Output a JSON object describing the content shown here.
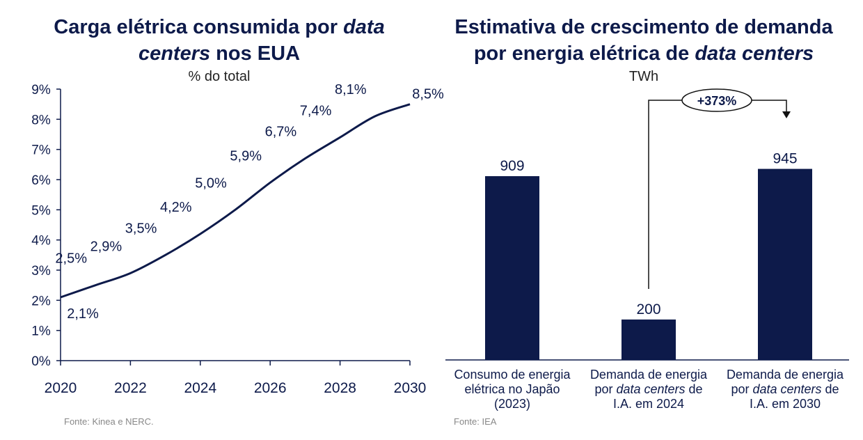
{
  "chart_data": [
    {
      "type": "line",
      "title_parts": [
        "Carga elétrica consumida por ",
        "data",
        "centers",
        " nos EUA"
      ],
      "subtitle": "% do total",
      "x": [
        2020,
        2021,
        2022,
        2023,
        2024,
        2025,
        2026,
        2027,
        2028,
        2029,
        2030
      ],
      "values": [
        2.1,
        2.5,
        2.9,
        3.5,
        4.2,
        5.0,
        5.9,
        6.7,
        7.4,
        8.1,
        8.5
      ],
      "value_labels": [
        "2,1%",
        "2,5%",
        "2,9%",
        "3,5%",
        "4,2%",
        "5,0%",
        "5,9%",
        "6,7%",
        "7,4%",
        "8,1%",
        "8,5%"
      ],
      "x_ticks": [
        "2020",
        "2022",
        "2024",
        "2026",
        "2028",
        "2030"
      ],
      "y_ticks": [
        "0%",
        "1%",
        "2%",
        "3%",
        "4%",
        "5%",
        "6%",
        "7%",
        "8%",
        "9%"
      ],
      "ylim": [
        0,
        9
      ],
      "xlim": [
        2020,
        2030
      ],
      "source": "Fonte: Kinea e NERC.",
      "line_color": "#0d1a4a"
    },
    {
      "type": "bar",
      "title_parts": [
        "Estimativa de crescimento de demanda",
        "por energia elétrica de ",
        "data centers"
      ],
      "subtitle": "TWh",
      "categories": [
        [
          "Consumo de energia",
          "elétrica no Japão",
          "(2023)"
        ],
        [
          "Demanda de energia",
          "por ",
          "data centers",
          " de",
          "I.A. em 2024"
        ],
        [
          "Demanda de energia",
          "por ",
          "data centers",
          " de",
          "I.A. em 2030"
        ]
      ],
      "values": [
        909,
        200,
        945
      ],
      "value_labels": [
        "909",
        "200",
        "945"
      ],
      "annotation": "+373%",
      "ylim": [
        0,
        1000
      ],
      "source": "Fonte: IEA",
      "bar_color": "#0d1a4a"
    }
  ]
}
